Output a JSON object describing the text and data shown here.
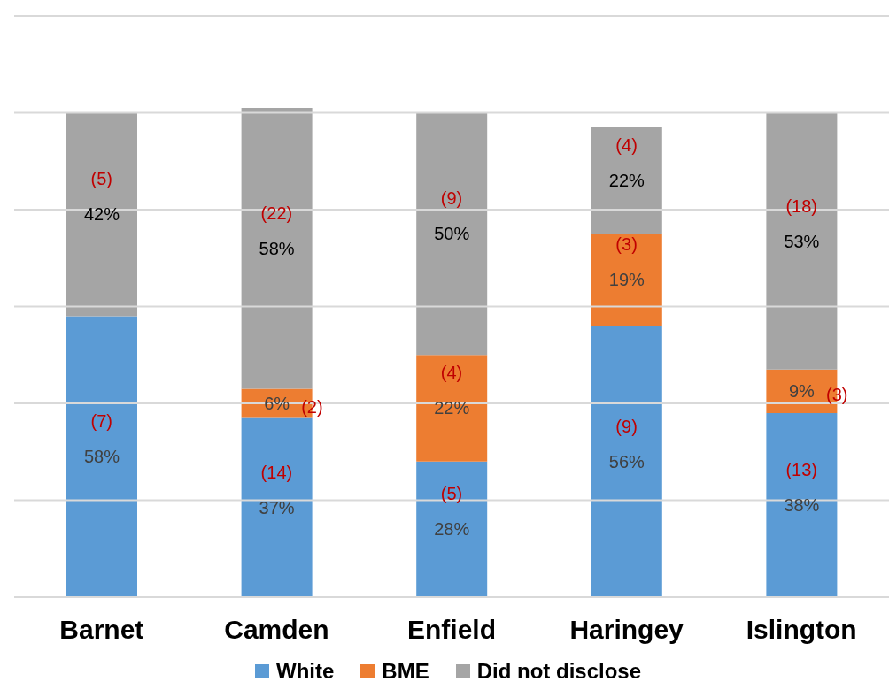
{
  "chart_data": {
    "type": "bar",
    "stacked": true,
    "categories": [
      "Barnet",
      "Camden",
      "Enfield",
      "Haringey",
      "Islington"
    ],
    "series": [
      {
        "name": "White",
        "color": "#5b9bd5",
        "values": [
          58,
          37,
          28,
          56,
          38
        ],
        "value_labels": [
          "58%",
          "37%",
          "28%",
          "56%",
          "38%"
        ]
      },
      {
        "name": "BME",
        "color": "#ed7d31",
        "values": [
          null,
          6,
          22,
          19,
          9
        ],
        "value_labels": [
          null,
          "6%",
          "22%",
          "19%",
          "9%"
        ]
      },
      {
        "name": "Did not disclose",
        "color": "#a5a5a5",
        "values": [
          42,
          58,
          50,
          22,
          53
        ],
        "value_labels": [
          "42%",
          "58%",
          "50%",
          "22%",
          "53%"
        ]
      }
    ],
    "ylim": [
      0,
      120
    ],
    "yticks": [
      {
        "value": 0,
        "label": null
      },
      {
        "value": 20,
        "label": null
      },
      {
        "value": 40,
        "label": null
      },
      {
        "value": 60,
        "label": null
      },
      {
        "value": 80,
        "label": null
      },
      {
        "value": 100,
        "label": null
      },
      {
        "value": 120,
        "label": null
      }
    ],
    "grid": "y",
    "tick_labels": "x",
    "legend": "bottom",
    "annotations": [
      "(7)",
      "(5)",
      "(14)",
      "(2)",
      "(22)",
      "(5)",
      "(4)",
      "(9)",
      "(9)",
      "(3)",
      "(4)",
      "(13)",
      "(3)",
      "(18)"
    ]
  }
}
